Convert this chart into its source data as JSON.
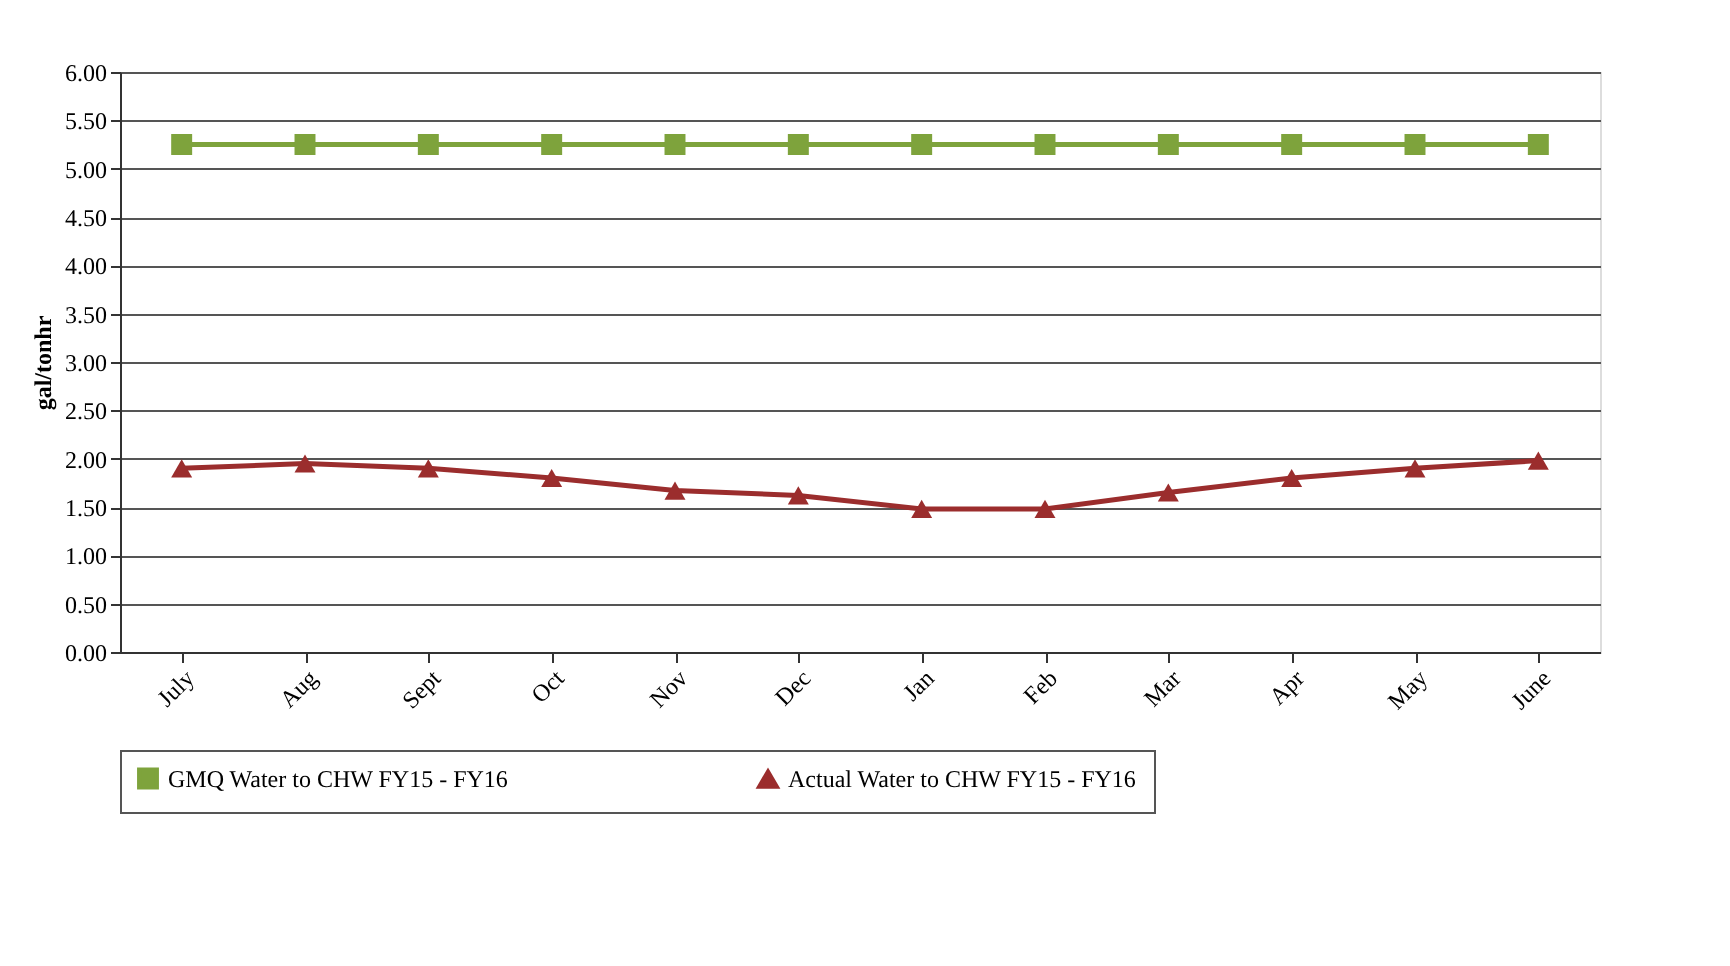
{
  "chart_data": {
    "type": "line",
    "ylabel": "gal/tonhr",
    "categories": [
      "July",
      "Aug",
      "Sept",
      "Oct",
      "Nov",
      "Dec",
      "Jan",
      "Feb",
      "Mar",
      "Apr",
      "May",
      "June"
    ],
    "ylim": [
      0,
      6
    ],
    "yticks": [
      {
        "value": 0,
        "label": "0.00"
      },
      {
        "value": 0.5,
        "label": "0.50"
      },
      {
        "value": 1,
        "label": "1.00"
      },
      {
        "value": 1.5,
        "label": "1.50"
      },
      {
        "value": 2,
        "label": "2.00"
      },
      {
        "value": 2.5,
        "label": "2.50"
      },
      {
        "value": 3,
        "label": "3.00"
      },
      {
        "value": 3.5,
        "label": "3.50"
      },
      {
        "value": 4,
        "label": "4.00"
      },
      {
        "value": 4.5,
        "label": "4.50"
      },
      {
        "value": 5,
        "label": "5.00"
      },
      {
        "value": 5.5,
        "label": "5.50"
      },
      {
        "value": 6,
        "label": "6.00"
      }
    ],
    "grid": "y",
    "legend": "bottom",
    "line_style": "solid",
    "series": [
      {
        "name": "GMQ Water to CHW FY15 - FY16",
        "color": "#7ea33c",
        "marker": "square",
        "values": [
          5.25,
          5.25,
          5.25,
          5.25,
          5.25,
          5.25,
          5.25,
          5.25,
          5.25,
          5.25,
          5.25,
          5.25
        ]
      },
      {
        "name": "Actual Water to CHW FY15 - FY16",
        "color": "#9b2d2d",
        "marker": "triangle",
        "values": [
          1.9,
          1.95,
          1.9,
          1.8,
          1.67,
          1.62,
          1.48,
          1.48,
          1.65,
          1.8,
          1.9,
          1.98
        ]
      }
    ]
  }
}
